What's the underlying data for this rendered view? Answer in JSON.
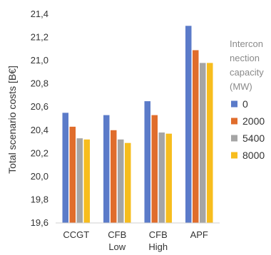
{
  "chart_data": {
    "type": "bar",
    "ylabel": "Total scenario costs [B€]",
    "categories": [
      [
        "CCGT"
      ],
      [
        "CFB",
        "Low"
      ],
      [
        "CFB",
        "High"
      ],
      [
        "APF"
      ]
    ],
    "ylim": [
      19.6,
      21.4
    ],
    "yticks": [
      "19,6",
      "19,8",
      "20,0",
      "20,2",
      "20,4",
      "20,6",
      "20,8",
      "21,0",
      "21,2",
      "21,4"
    ],
    "grid": false,
    "legend": {
      "title_lines": [
        "Intercon",
        "nection",
        "capacity",
        "(MW)"
      ],
      "placement": "right"
    },
    "series": [
      {
        "name": "0",
        "color": "#5b7bc9",
        "values": [
          20.55,
          20.53,
          20.65,
          21.3
        ]
      },
      {
        "name": "2000",
        "color": "#e06d2c",
        "values": [
          20.43,
          20.4,
          20.53,
          21.09
        ]
      },
      {
        "name": "5400",
        "color": "#a5a5a5",
        "values": [
          20.33,
          20.32,
          20.38,
          20.98
        ]
      },
      {
        "name": "8000",
        "color": "#f7bd1e",
        "values": [
          20.32,
          20.29,
          20.37,
          20.98
        ]
      }
    ]
  }
}
